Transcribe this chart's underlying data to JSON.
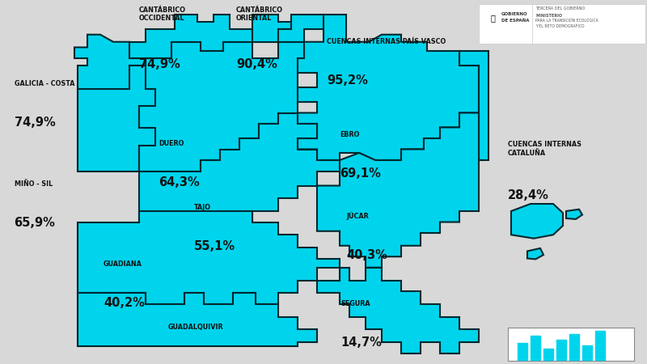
{
  "background_color": "#d8d8d8",
  "map_fill_color": "#00d4ec",
  "map_edge_color": "#00282e",
  "map_edge_width": 1.5,
  "text_color": "#111111",
  "fig_w": 8.0,
  "fig_h": 4.5,
  "regions": [
    {
      "name": "GALICIA - COSTA",
      "value": "74,9%",
      "nx": 0.022,
      "ny": 0.76,
      "vx": 0.022,
      "vy": 0.68,
      "ns": 5.8,
      "vs": 10.5,
      "nha": "left",
      "vha": "left"
    },
    {
      "name": "MIÑO - SIL",
      "value": "65,9%",
      "nx": 0.022,
      "ny": 0.485,
      "vx": 0.022,
      "vy": 0.405,
      "ns": 5.8,
      "vs": 10.5,
      "nha": "left",
      "vha": "left"
    },
    {
      "name": "CANTÁBRICO\nOCCIDENTAL",
      "value": "74,9%",
      "nx": 0.215,
      "ny": 0.94,
      "vx": 0.215,
      "vy": 0.84,
      "ns": 5.8,
      "vs": 10.5,
      "nha": "left",
      "vha": "left"
    },
    {
      "name": "CANTÁBRICO\nORIENTAL",
      "value": "90,4%",
      "nx": 0.365,
      "ny": 0.94,
      "vx": 0.365,
      "vy": 0.84,
      "ns": 5.8,
      "vs": 10.5,
      "nha": "left",
      "vha": "left"
    },
    {
      "name": "CUENCAS INTERNAS PAÍS VASCO",
      "value": "95,2%",
      "nx": 0.505,
      "ny": 0.875,
      "vx": 0.505,
      "vy": 0.795,
      "ns": 5.8,
      "vs": 10.5,
      "nha": "left",
      "vha": "left"
    },
    {
      "name": "DUERO",
      "value": "64,3%",
      "nx": 0.245,
      "ny": 0.595,
      "vx": 0.245,
      "vy": 0.515,
      "ns": 5.8,
      "vs": 10.5,
      "nha": "left",
      "vha": "left"
    },
    {
      "name": "EBRO",
      "value": "69,1%",
      "nx": 0.525,
      "ny": 0.62,
      "vx": 0.525,
      "vy": 0.54,
      "ns": 5.8,
      "vs": 10.5,
      "nha": "left",
      "vha": "left"
    },
    {
      "name": "CUENCAS INTERNAS\nCATALUÑA",
      "value": "28,4%",
      "nx": 0.785,
      "ny": 0.57,
      "vx": 0.785,
      "vy": 0.48,
      "ns": 5.8,
      "vs": 10.5,
      "nha": "left",
      "vha": "left"
    },
    {
      "name": "TAJO",
      "value": "55,1%",
      "nx": 0.3,
      "ny": 0.42,
      "vx": 0.3,
      "vy": 0.34,
      "ns": 5.8,
      "vs": 10.5,
      "nha": "left",
      "vha": "left"
    },
    {
      "name": "JÚCAR",
      "value": "40,3%",
      "nx": 0.535,
      "ny": 0.395,
      "vx": 0.535,
      "vy": 0.315,
      "ns": 5.8,
      "vs": 10.5,
      "nha": "left",
      "vha": "left"
    },
    {
      "name": "GUADIANA",
      "value": "40,2%",
      "nx": 0.16,
      "ny": 0.265,
      "vx": 0.16,
      "vy": 0.185,
      "ns": 5.8,
      "vs": 10.5,
      "nha": "left",
      "vha": "left"
    },
    {
      "name": "SEGURA",
      "value": "14,7%",
      "nx": 0.527,
      "ny": 0.155,
      "vx": 0.527,
      "vy": 0.075,
      "ns": 5.8,
      "vs": 10.5,
      "nha": "left",
      "vha": "left"
    },
    {
      "name": "GUADALQUIVIR",
      "value": "",
      "nx": 0.26,
      "ny": 0.09,
      "vx": 0.26,
      "vy": 0.01,
      "ns": 5.8,
      "vs": 10.5,
      "nha": "left",
      "vha": "left"
    }
  ]
}
